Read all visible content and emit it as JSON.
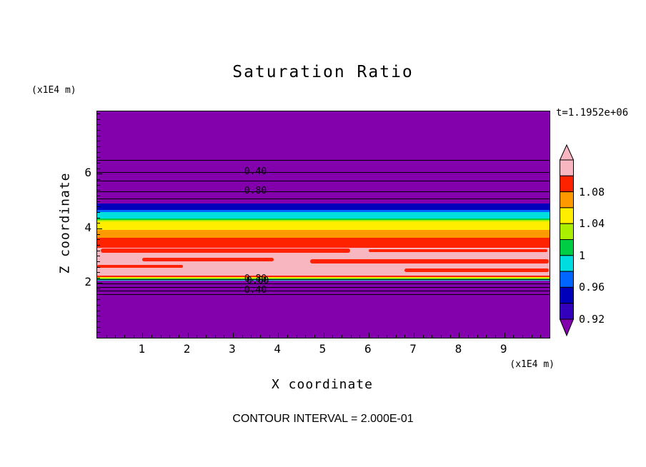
{
  "title": "Saturation Ratio",
  "time_label": "t=1.1952e+06",
  "contour_interval_label": "CONTOUR INTERVAL = 2.000E-01",
  "x_axis": {
    "label": "X coordinate",
    "unit": "(x1E4 m)",
    "tick_labels": [
      "1",
      "2",
      "3",
      "4",
      "5",
      "6",
      "7",
      "8",
      "9"
    ],
    "tick_values": [
      1,
      2,
      3,
      4,
      5,
      6,
      7,
      8,
      9
    ]
  },
  "y_axis": {
    "label": "Z coordinate",
    "unit": "(x1E4 m)",
    "tick_labels": [
      "6",
      "4",
      "2"
    ],
    "tick_values": [
      6,
      4,
      2
    ]
  },
  "colorbar": {
    "labels": [
      "1.08",
      "1.04",
      "1",
      "0.96",
      "0.92"
    ],
    "segment_colors": [
      "pink",
      "red",
      "orange",
      "yellow",
      "chartreuse",
      "green",
      "cyan",
      "blue",
      "navy",
      "indigo"
    ],
    "top_arrow_color": "pink",
    "bottom_arrow_color": "purple"
  },
  "palette": {
    "purple": "#8300ad",
    "navy": "#0000bb",
    "blue": "#0066ff",
    "cyan": "#00dde0",
    "green": "#00cc44",
    "chartreuse": "#aaee00",
    "yellow": "#ffee00",
    "orange": "#ff9900",
    "red": "#ff2200",
    "pink": "#f8b6c0",
    "indigo": "#3300bb",
    "line": "#000000"
  },
  "chart_data": {
    "type": "heatmap",
    "subtype": "filled contour plot, horizontally stratified",
    "title": "Saturation Ratio",
    "xlabel": "X coordinate (x1E4 m)",
    "ylabel": "Z coordinate (x1E4 m)",
    "xlim": [
      0,
      10
    ],
    "ylim": [
      0,
      8.28
    ],
    "grid": false,
    "legend_position": "right colorbar with arrow ends",
    "time_stamp": "t=1.1952e+06",
    "contour_interval": 0.2,
    "colorbar_tick_values": [
      1.08,
      1.04,
      1,
      0.96,
      0.92
    ],
    "bands": [
      {
        "z_top": 8.28,
        "z_bottom": 4.91,
        "color": "purple",
        "value": "< 0.92"
      },
      {
        "z_top": 4.91,
        "z_bottom": 4.675,
        "color": "navy",
        "value": "0.92-0.94"
      },
      {
        "z_top": 4.675,
        "z_bottom": 4.597,
        "color": "blue",
        "value": "0.94-0.96"
      },
      {
        "z_top": 4.597,
        "z_bottom": 4.362,
        "color": "cyan",
        "value": "0.96-0.98"
      },
      {
        "z_top": 4.362,
        "z_bottom": 4.31,
        "color": "green",
        "value": "0.98-1.00"
      },
      {
        "z_top": 4.31,
        "z_bottom": 4.258,
        "color": "chartreuse",
        "value": "1.00-1.02"
      },
      {
        "z_top": 4.258,
        "z_bottom": 3.944,
        "color": "yellow",
        "value": "1.02-1.04"
      },
      {
        "z_top": 3.944,
        "z_bottom": 3.657,
        "color": "orange",
        "value": "1.04-1.06"
      },
      {
        "z_top": 3.657,
        "z_bottom": 3.291,
        "color": "red",
        "value": "1.06-1.10"
      },
      {
        "z_top": 3.291,
        "z_bottom": 2.272,
        "color": "pink",
        "value": "> 1.10"
      },
      {
        "z_top": 2.272,
        "z_bottom": 2.22,
        "color": "red",
        "value": "1.06-1.10"
      },
      {
        "z_top": 2.22,
        "z_bottom": 2.168,
        "color": "yellow",
        "value": "1.00-1.04"
      },
      {
        "z_top": 2.168,
        "z_bottom": 2.129,
        "color": "green",
        "value": "0.96-1.00"
      },
      {
        "z_top": 2.129,
        "z_bottom": 2.09,
        "color": "cyan",
        "value": "0.94-0.98"
      },
      {
        "z_top": 2.09,
        "z_bottom": 0,
        "color": "purple",
        "value": "< 0.92"
      }
    ],
    "streaks": [
      {
        "x0": 0.08,
        "x1": 5.6,
        "z_top": 3.265,
        "z_bottom": 3.11,
        "color": "red"
      },
      {
        "x0": 6.0,
        "x1": 9.95,
        "z_top": 3.24,
        "z_bottom": 3.14,
        "color": "red"
      },
      {
        "x0": 1.0,
        "x1": 3.9,
        "z_top": 2.925,
        "z_bottom": 2.8,
        "color": "red"
      },
      {
        "x0": 4.7,
        "x1": 9.98,
        "z_top": 2.875,
        "z_bottom": 2.72,
        "color": "red"
      },
      {
        "x0": 0.0,
        "x1": 1.9,
        "z_top": 2.665,
        "z_bottom": 2.56,
        "color": "red"
      },
      {
        "x0": 6.8,
        "x1": 9.98,
        "z_top": 2.535,
        "z_bottom": 2.4,
        "color": "red"
      }
    ],
    "contour_lines_z": [
      6.5,
      6.06,
      5.75,
      5.35,
      5.09,
      2.14,
      1.99,
      1.85,
      1.72,
      1.59
    ],
    "contour_labels": [
      {
        "text": "0.40",
        "x": 3.5,
        "z": 6.06
      },
      {
        "text": "0.80",
        "x": 3.5,
        "z": 5.35
      },
      {
        "text": "0.80",
        "x": 3.5,
        "z": 2.15
      },
      {
        "text": "0.60",
        "x": 3.55,
        "z": 2.06
      },
      {
        "text": "0.40",
        "x": 3.5,
        "z": 1.72
      }
    ]
  }
}
